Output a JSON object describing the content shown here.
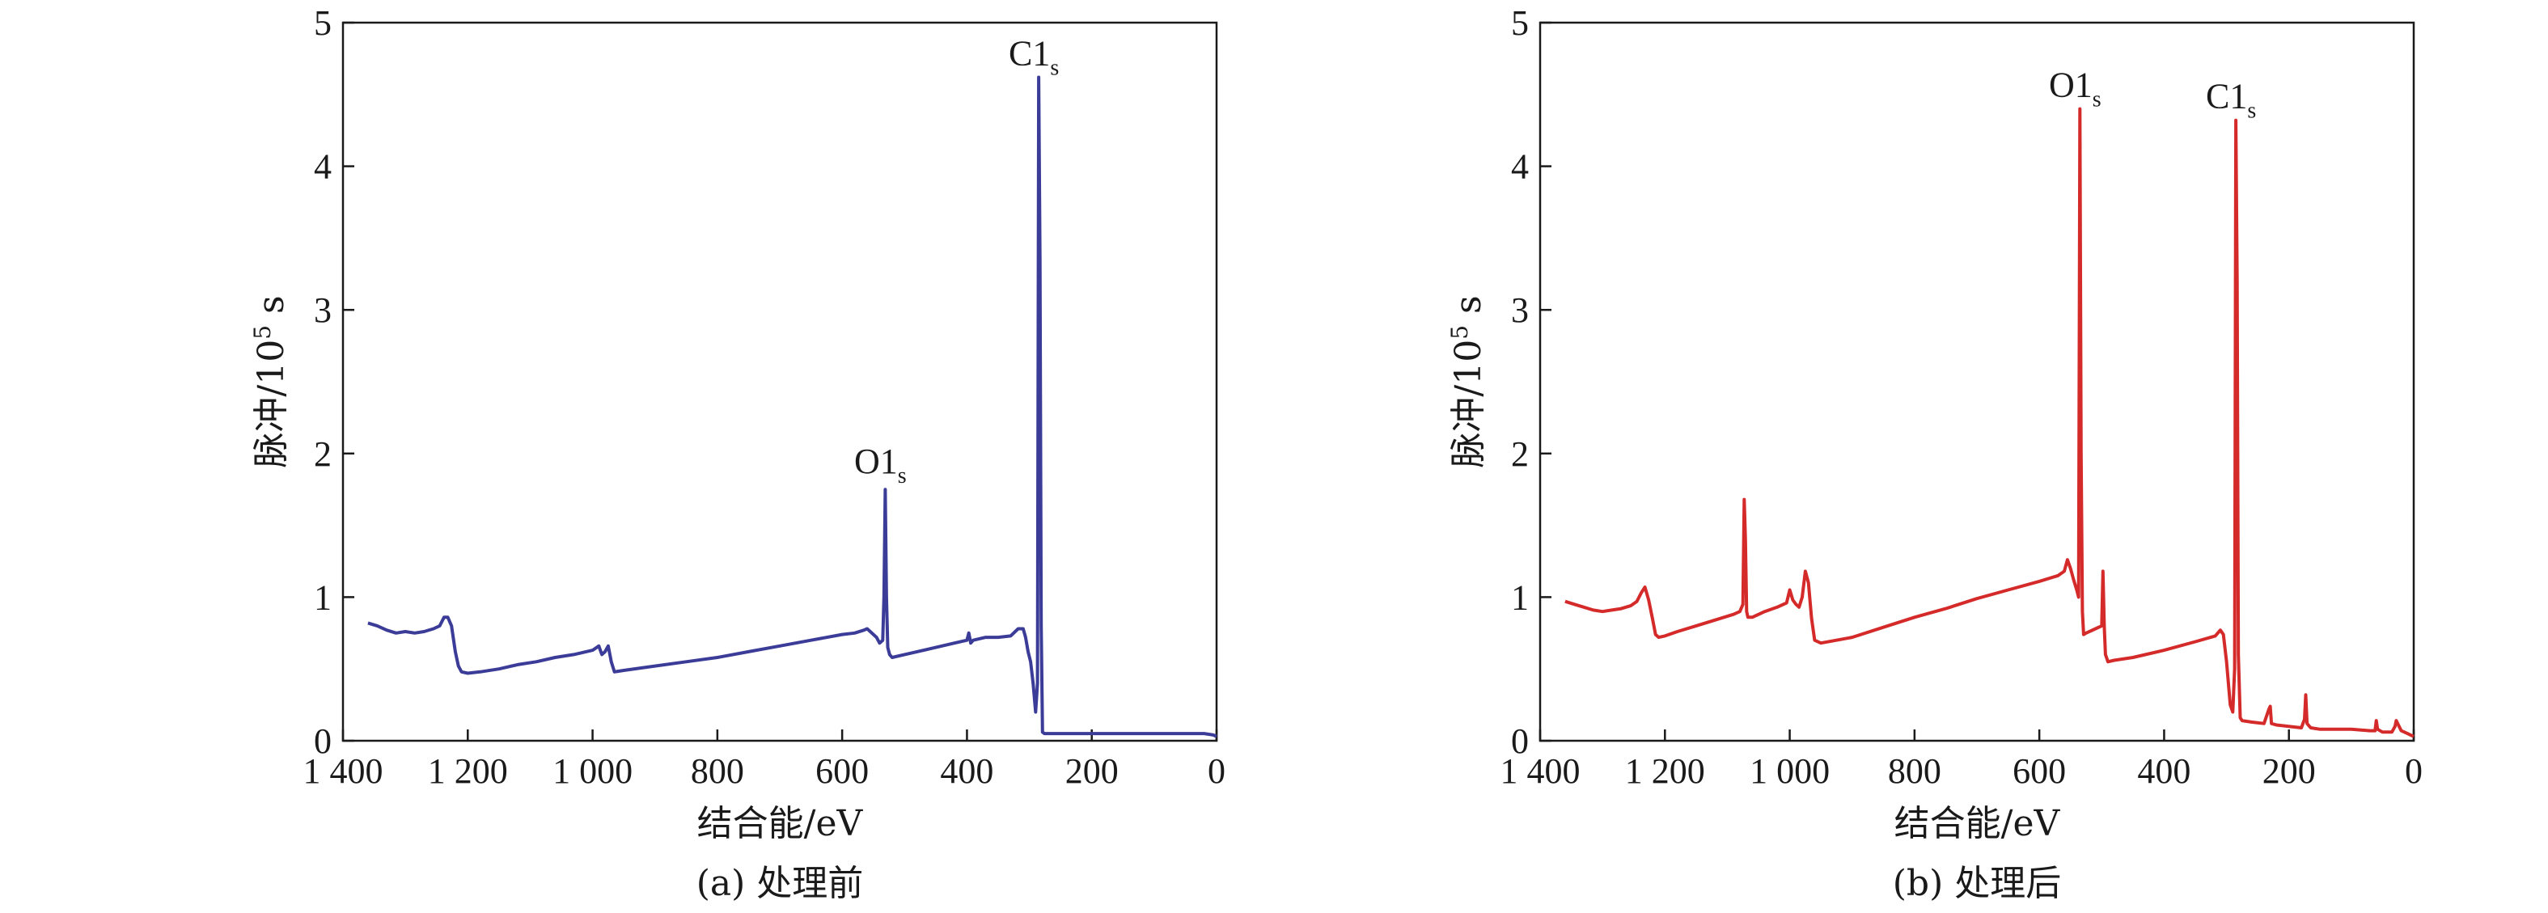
{
  "chart_data": [
    {
      "type": "line",
      "caption": "(a) 处理前",
      "xlabel": "结合能/eV",
      "ylabel_main": "脉冲/10",
      "ylabel_sup": "5",
      "ylabel_unit": " s",
      "xlim": [
        1400,
        0
      ],
      "ylim": [
        0,
        5
      ],
      "x_ticks": [
        1400,
        1200,
        1000,
        800,
        600,
        400,
        200,
        0
      ],
      "x_tick_labels": [
        "1 400",
        "1 200",
        "1 000",
        "800",
        "600",
        "400",
        "200",
        "0"
      ],
      "y_ticks": [
        0,
        1,
        2,
        3,
        4,
        5
      ],
      "y_tick_labels": [
        "0",
        "1",
        "2",
        "3",
        "4",
        "5"
      ],
      "color": "#3b3b98",
      "annotations": [
        {
          "main": "O1",
          "sub": "s",
          "x": 531,
          "y": 1.82
        },
        {
          "main": "C1",
          "sub": "s",
          "x": 285,
          "y": 4.66
        }
      ],
      "series": [
        {
          "x": [
            1360,
            1345,
            1330,
            1315,
            1300,
            1285,
            1270,
            1255,
            1245,
            1238,
            1232,
            1226,
            1220,
            1215,
            1210,
            1200,
            1180,
            1150,
            1120,
            1090,
            1060,
            1030,
            1000,
            990,
            985,
            980,
            975,
            970,
            965,
            950,
            900,
            850,
            800,
            750,
            700,
            650,
            600,
            580,
            565,
            560,
            555,
            545,
            540,
            535,
            533,
            531,
            529,
            527,
            524,
            520,
            500,
            480,
            450,
            420,
            400,
            397,
            394,
            390,
            370,
            350,
            330,
            318,
            310,
            306,
            302,
            298,
            294,
            290,
            287,
            285,
            283,
            281,
            279,
            276,
            270,
            250,
            200,
            150,
            100,
            50,
            20,
            5,
            0
          ],
          "y": [
            0.82,
            0.8,
            0.77,
            0.75,
            0.76,
            0.75,
            0.76,
            0.78,
            0.8,
            0.86,
            0.86,
            0.8,
            0.62,
            0.52,
            0.48,
            0.47,
            0.48,
            0.5,
            0.53,
            0.55,
            0.58,
            0.6,
            0.63,
            0.66,
            0.6,
            0.62,
            0.66,
            0.55,
            0.48,
            0.49,
            0.52,
            0.55,
            0.58,
            0.62,
            0.66,
            0.7,
            0.74,
            0.75,
            0.77,
            0.78,
            0.76,
            0.72,
            0.68,
            0.7,
            1.0,
            1.75,
            1.0,
            0.65,
            0.6,
            0.58,
            0.6,
            0.62,
            0.65,
            0.68,
            0.7,
            0.75,
            0.68,
            0.7,
            0.72,
            0.72,
            0.73,
            0.78,
            0.78,
            0.72,
            0.62,
            0.55,
            0.4,
            0.2,
            0.4,
            4.62,
            3.35,
            0.8,
            0.06,
            0.05,
            0.05,
            0.05,
            0.05,
            0.05,
            0.05,
            0.05,
            0.05,
            0.04,
            0.03
          ]
        }
      ]
    },
    {
      "type": "line",
      "caption": "(b) 处理后",
      "xlabel": "结合能/eV",
      "ylabel_main": "脉冲/10",
      "ylabel_sup": "5",
      "ylabel_unit": " s",
      "xlim": [
        1400,
        0
      ],
      "ylim": [
        0,
        5
      ],
      "x_ticks": [
        1400,
        1200,
        1000,
        800,
        600,
        400,
        200,
        0
      ],
      "x_tick_labels": [
        "1 400",
        "1 200",
        "1 000",
        "800",
        "600",
        "400",
        "200",
        "0"
      ],
      "y_ticks": [
        0,
        1,
        2,
        3,
        4,
        5
      ],
      "y_tick_labels": [
        "0",
        "1",
        "2",
        "3",
        "4",
        "5"
      ],
      "color": "#d42a2a",
      "annotations": [
        {
          "main": "O1",
          "sub": "s",
          "x": 535,
          "y": 4.44
        },
        {
          "main": "C1",
          "sub": "s",
          "x": 285,
          "y": 4.36
        }
      ],
      "series": [
        {
          "x": [
            1360,
            1345,
            1330,
            1315,
            1300,
            1285,
            1270,
            1255,
            1245,
            1238,
            1232,
            1226,
            1220,
            1215,
            1210,
            1200,
            1180,
            1150,
            1120,
            1090,
            1080,
            1075,
            1073,
            1071,
            1069,
            1067,
            1060,
            1040,
            1020,
            1005,
            1000,
            995,
            990,
            985,
            980,
            975,
            970,
            965,
            960,
            950,
            900,
            850,
            800,
            750,
            700,
            650,
            600,
            570,
            560,
            555,
            550,
            545,
            540,
            537,
            535,
            533,
            531,
            529,
            525,
            510,
            500,
            498,
            496,
            494,
            490,
            480,
            450,
            400,
            350,
            318,
            310,
            305,
            300,
            297,
            294,
            290,
            287,
            285,
            283,
            281,
            278,
            275,
            260,
            240,
            232,
            230,
            228,
            220,
            200,
            180,
            175,
            173,
            171,
            165,
            150,
            120,
            100,
            70,
            62,
            60,
            58,
            50,
            35,
            30,
            28,
            20,
            10,
            5,
            0
          ],
          "y": [
            0.97,
            0.95,
            0.93,
            0.91,
            0.9,
            0.91,
            0.92,
            0.94,
            0.97,
            1.03,
            1.07,
            0.98,
            0.85,
            0.74,
            0.72,
            0.73,
            0.76,
            0.8,
            0.84,
            0.88,
            0.9,
            0.95,
            1.68,
            1.4,
            0.9,
            0.86,
            0.86,
            0.9,
            0.93,
            0.96,
            1.05,
            0.98,
            0.95,
            0.93,
            1.0,
            1.18,
            1.1,
            0.85,
            0.7,
            0.68,
            0.72,
            0.79,
            0.86,
            0.92,
            0.99,
            1.05,
            1.11,
            1.15,
            1.18,
            1.26,
            1.2,
            1.12,
            1.05,
            1.0,
            4.4,
            2.0,
            0.9,
            0.74,
            0.75,
            0.78,
            0.8,
            1.18,
            0.8,
            0.6,
            0.55,
            0.56,
            0.58,
            0.63,
            0.69,
            0.73,
            0.77,
            0.74,
            0.55,
            0.4,
            0.25,
            0.2,
            0.5,
            4.32,
            3.2,
            0.6,
            0.16,
            0.14,
            0.13,
            0.12,
            0.22,
            0.24,
            0.12,
            0.11,
            0.1,
            0.09,
            0.15,
            0.32,
            0.12,
            0.09,
            0.08,
            0.08,
            0.08,
            0.07,
            0.07,
            0.14,
            0.08,
            0.06,
            0.06,
            0.1,
            0.14,
            0.07,
            0.05,
            0.04,
            0.03
          ]
        }
      ]
    }
  ]
}
